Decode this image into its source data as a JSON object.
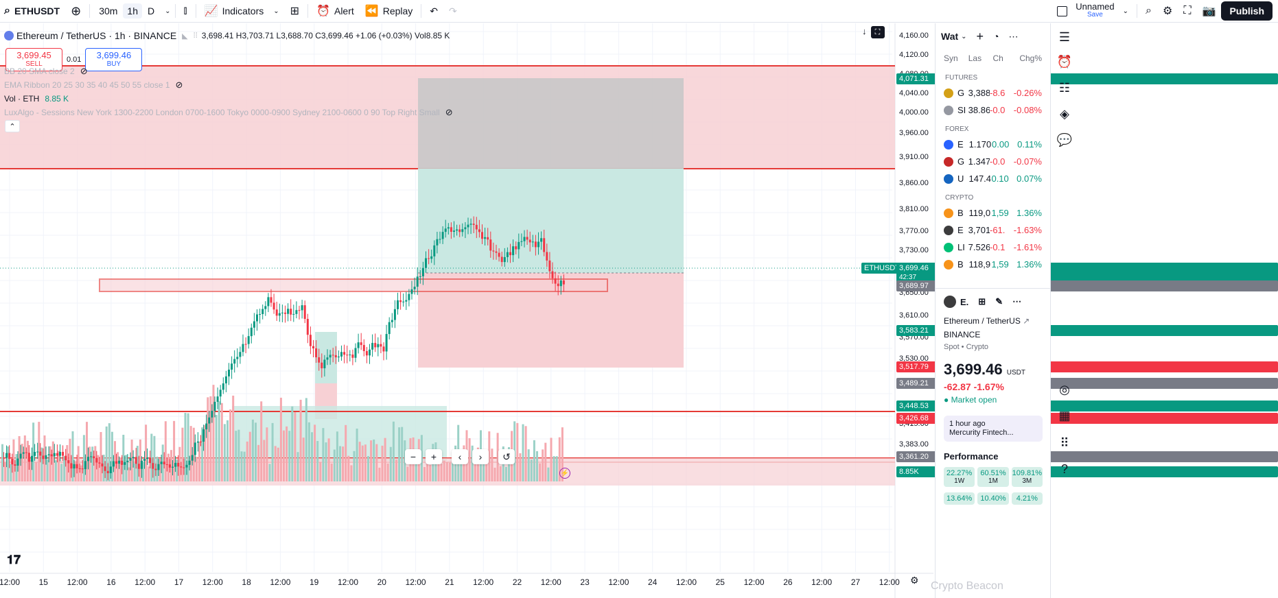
{
  "topbar": {
    "symbol": "ETHUSDT",
    "timeframes": [
      "30m",
      "1h",
      "D"
    ],
    "indicators_label": "Indicators",
    "alert_label": "Alert",
    "replay_label": "Replay",
    "layout_name": "Unnamed",
    "layout_save": "Save",
    "publish_label": "Publish"
  },
  "legend": {
    "title": "Ethereum / TetherUS · 1h · BINANCE",
    "ohlc": "3,698.41 H3,703.71 L3,688.70 C3,699.46 +1.06 (+0.03%) Vol8.85 K"
  },
  "trade": {
    "sell_price": "3,699.45",
    "sell_label": "SELL",
    "spread": "0.01",
    "buy_price": "3,699.46",
    "buy_label": "BUY"
  },
  "indicators": {
    "bb": "BB 20 SMA close 2",
    "ema": "EMA Ribbon 20 25 30 35 40 45 50 55 close 1",
    "vol_label": "Vol · ETH",
    "vol_value": "8.85 K",
    "lux": "LuxAlgo - Sessions New York 1300-2200 London 0700-1600 Tokyo 0000-0900 Sydney 2100-0600 0 90 Top Right Small"
  },
  "price_axis": {
    "ticks": [
      "4,160.00",
      "4,120.00",
      "4,080.00",
      "4,040.00",
      "4,000.00",
      "3,960.00",
      "3,910.00",
      "3,860.00",
      "3,810.00",
      "3,770.00",
      "3,730.00",
      "3,650.00",
      "3,610.00",
      "3,570.00",
      "3,530.00",
      "3,415.00",
      "3,383.00"
    ],
    "labels": {
      "top_zone": "4,071.31",
      "last": "3,699.46",
      "countdown": "42:37",
      "symbol_tag": "ETHUSDT",
      "entry": "3,689.97",
      "l1": "3,583.21",
      "stop": "3,517.79",
      "l2": "3,489.21",
      "l3": "3,448.53",
      "l4": "3,426.68",
      "l5": "3,361.20",
      "vol": "8.85K"
    }
  },
  "time_axis": [
    "12:00",
    "15",
    "12:00",
    "16",
    "12:00",
    "17",
    "12:00",
    "18",
    "12:00",
    "19",
    "12:00",
    "20",
    "12:00",
    "21",
    "12:00",
    "22",
    "12:00",
    "23",
    "12:00",
    "24",
    "12:00",
    "25",
    "12:00",
    "26",
    "12:00",
    "27",
    "12:00"
  ],
  "watchlist": {
    "title": "Wat",
    "columns": [
      "Syn",
      "Las",
      "Ch",
      "Chg%"
    ],
    "groups": [
      {
        "name": "FUTURES",
        "rows": [
          {
            "sym": "G",
            "last": "3,388",
            "chg": "-8.6",
            "pct": "-0.26%",
            "dir": "dn",
            "color": "#d4a017"
          },
          {
            "sym": "SI",
            "last": "38.86",
            "chg": "-0.0",
            "pct": "-0.08%",
            "dir": "dn",
            "color": "#9598a1"
          }
        ]
      },
      {
        "name": "FOREX",
        "rows": [
          {
            "sym": "E",
            "last": "1.170",
            "chg": "0.00",
            "pct": "0.11%",
            "dir": "up",
            "color": "#2962ff"
          },
          {
            "sym": "G",
            "last": "1.347",
            "chg": "-0.0",
            "pct": "-0.07%",
            "dir": "dn",
            "color": "#c62828"
          },
          {
            "sym": "U",
            "last": "147.4",
            "chg": "0.10",
            "pct": "0.07%",
            "dir": "up",
            "color": "#1565c0"
          }
        ]
      },
      {
        "name": "CRYPTO",
        "rows": [
          {
            "sym": "B",
            "last": "119,0",
            "chg": "1,59",
            "pct": "1.36%",
            "dir": "up",
            "color": "#f7931a"
          },
          {
            "sym": "E",
            "last": "3,701",
            "chg": "-61.",
            "pct": "-1.63%",
            "dir": "dn",
            "color": "#3c3c3d"
          },
          {
            "sym": "LI",
            "last": "7.526",
            "chg": "-0.1",
            "pct": "-1.61%",
            "dir": "dn",
            "color": "#00c076"
          },
          {
            "sym": "B",
            "last": "118,9",
            "chg": "1,59",
            "pct": "1.36%",
            "dir": "up",
            "color": "#f7931a"
          }
        ]
      }
    ]
  },
  "detail": {
    "short": "E",
    "name": "Ethereum / TetherUS",
    "exchange": "BINANCE",
    "type": "Spot • Crypto",
    "price": "3,699.46",
    "currency": "USDT",
    "change": "-62.87 -1.67%",
    "market": "Market open",
    "news_time": "1 hour ago",
    "news_src": "Mercurity Fintech...",
    "perf_title": "Performance",
    "perf": [
      {
        "v": "22.27%",
        "p": "1W"
      },
      {
        "v": "60.51%",
        "p": "1M"
      },
      {
        "v": "109.81%",
        "p": "3M"
      }
    ],
    "perf2": [
      "13.64%",
      "10.40%",
      "4.21%"
    ]
  },
  "watermark": "Crypto Beacon",
  "colors": {
    "up": "#089981",
    "down": "#f23645",
    "zone_red": "#f7d0d4",
    "zone_green": "#c9e8e2",
    "zone_grey": "#c8c8c8"
  }
}
